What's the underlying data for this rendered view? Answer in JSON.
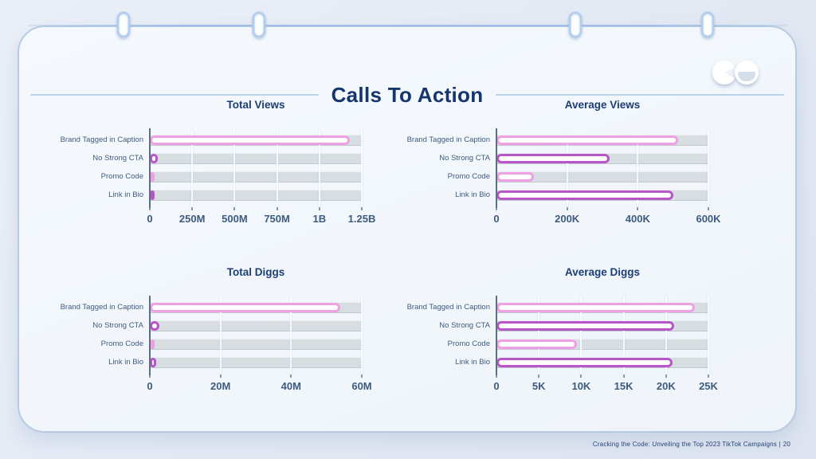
{
  "header": {
    "title": "Calls To Action"
  },
  "footer": {
    "text": "Cracking the Code: Unveiling the Top 2023 TikTok Campaigns |",
    "page": "20"
  },
  "colors": {
    "pink": "#efa0e2",
    "purple": "#b855c9",
    "track_gray": "#d8dde1",
    "axis_text": "#3d5b80",
    "title_navy": "#14356d"
  },
  "logo": {
    "left_shape": "pacman-circle",
    "right_shape": "smile-circle"
  },
  "chart_data": [
    {
      "type": "bar",
      "orientation": "horizontal",
      "title": "Total Views",
      "categories": [
        "Brand Tagged in Caption",
        "No Strong CTA",
        "Promo Code",
        "Link in Bio"
      ],
      "values": [
        1180000000,
        45000000,
        12000000,
        30000000
      ],
      "xlim": [
        0,
        1250000000
      ],
      "tick_values": [
        0,
        250000000,
        500000000,
        750000000,
        1000000000,
        1250000000
      ],
      "ticks": [
        "0",
        "250M",
        "500M",
        "750M",
        "1B",
        "1.25B"
      ],
      "bar_colors": [
        "pink",
        "purple",
        "pink",
        "purple"
      ],
      "grid": true,
      "xlabel": "",
      "ylabel": ""
    },
    {
      "type": "bar",
      "orientation": "horizontal",
      "title": "Average Views",
      "categories": [
        "Brand Tagged in Caption",
        "No Strong CTA",
        "Promo Code",
        "Link in Bio"
      ],
      "values": [
        515000,
        320000,
        105000,
        500000
      ],
      "xlim": [
        0,
        600000
      ],
      "tick_values": [
        0,
        200000,
        400000,
        600000
      ],
      "ticks": [
        "0",
        "200K",
        "400K",
        "600K"
      ],
      "bar_colors": [
        "pink",
        "purple",
        "pink",
        "purple"
      ],
      "grid": true,
      "xlabel": "",
      "ylabel": ""
    },
    {
      "type": "bar",
      "orientation": "horizontal",
      "title": "Total Diggs",
      "categories": [
        "Brand Tagged in Caption",
        "No Strong CTA",
        "Promo Code",
        "Link in Bio"
      ],
      "values": [
        54000000,
        2700000,
        700000,
        1800000
      ],
      "xlim": [
        0,
        60000000
      ],
      "tick_values": [
        0,
        20000000,
        40000000,
        60000000
      ],
      "ticks": [
        "0",
        "20M",
        "40M",
        "60M"
      ],
      "bar_colors": [
        "pink",
        "purple",
        "pink",
        "purple"
      ],
      "grid": true,
      "xlabel": "",
      "ylabel": ""
    },
    {
      "type": "bar",
      "orientation": "horizontal",
      "title": "Average Diggs",
      "categories": [
        "Brand Tagged in Caption",
        "No Strong CTA",
        "Promo Code",
        "Link in Bio"
      ],
      "values": [
        23400,
        21000,
        9500,
        20800
      ],
      "xlim": [
        0,
        25000
      ],
      "tick_values": [
        0,
        5000,
        10000,
        15000,
        20000,
        25000
      ],
      "ticks": [
        "0",
        "5K",
        "10K",
        "15K",
        "20K",
        "25K"
      ],
      "bar_colors": [
        "pink",
        "purple",
        "pink",
        "purple"
      ],
      "grid": true,
      "xlabel": "",
      "ylabel": ""
    }
  ]
}
